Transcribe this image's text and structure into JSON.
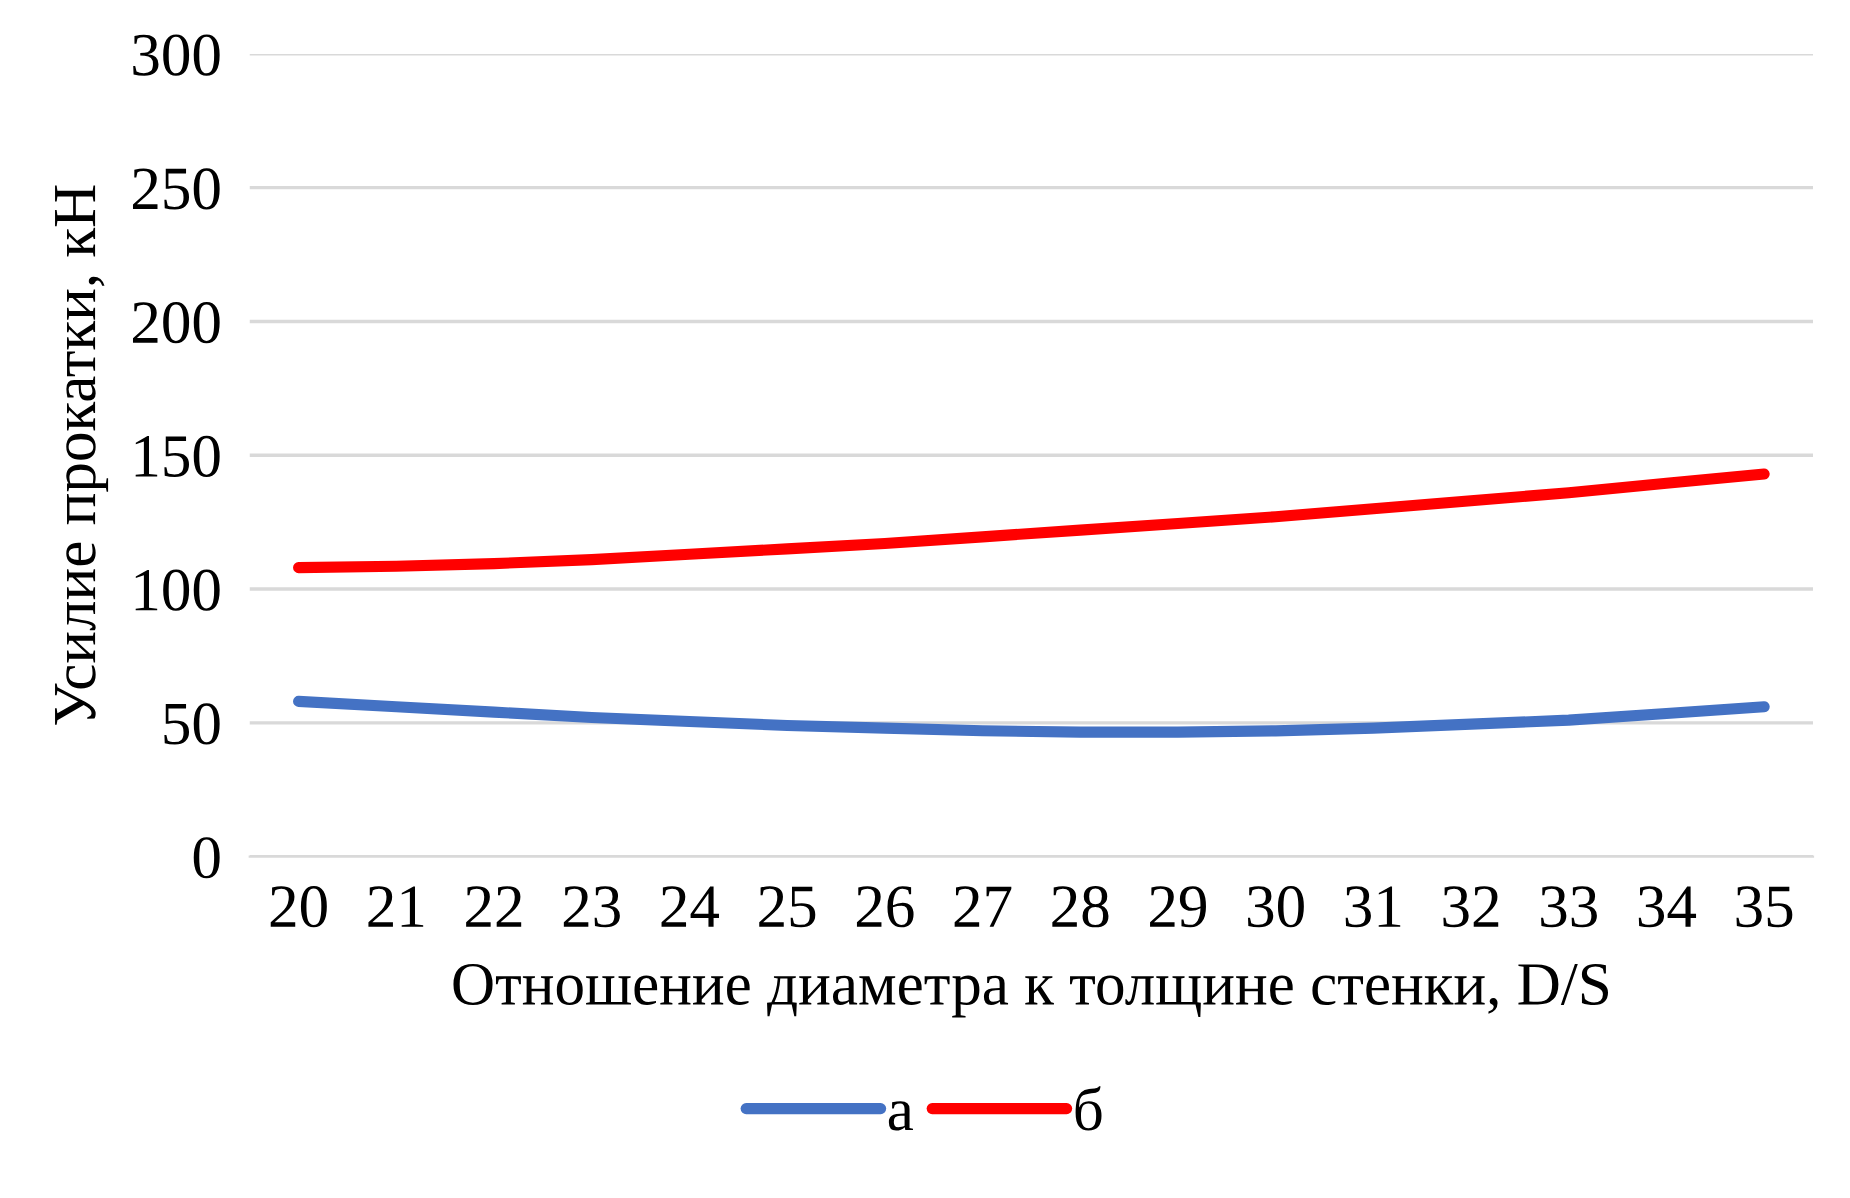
{
  "chart_data": {
    "type": "line",
    "xlabel": "Отношение диаметра к толщине стенки, D/S",
    "ylabel": "Усилие прокатки, кН",
    "categories": [
      "20",
      "21",
      "22",
      "23",
      "24",
      "25",
      "26",
      "27",
      "28",
      "29",
      "30",
      "31",
      "32",
      "33",
      "34",
      "35"
    ],
    "series": [
      {
        "name": "а",
        "color": "#4472c4",
        "values": [
          58,
          56,
          54,
          52,
          50.5,
          49,
          48,
          47,
          46.5,
          46.5,
          47,
          48,
          49.5,
          51,
          53.5,
          56
        ]
      },
      {
        "name": "б",
        "color": "#ff0000",
        "values": [
          108,
          108.5,
          109.5,
          111,
          113,
          115,
          117,
          119.5,
          122,
          124.5,
          127,
          130,
          133,
          136,
          139.5,
          143
        ]
      }
    ],
    "ylim": [
      0,
      300
    ],
    "yticks": [
      0,
      50,
      100,
      150,
      200,
      250,
      300
    ],
    "grid": "y",
    "legend": "bottom",
    "marker": "none",
    "line_style": "solid"
  }
}
